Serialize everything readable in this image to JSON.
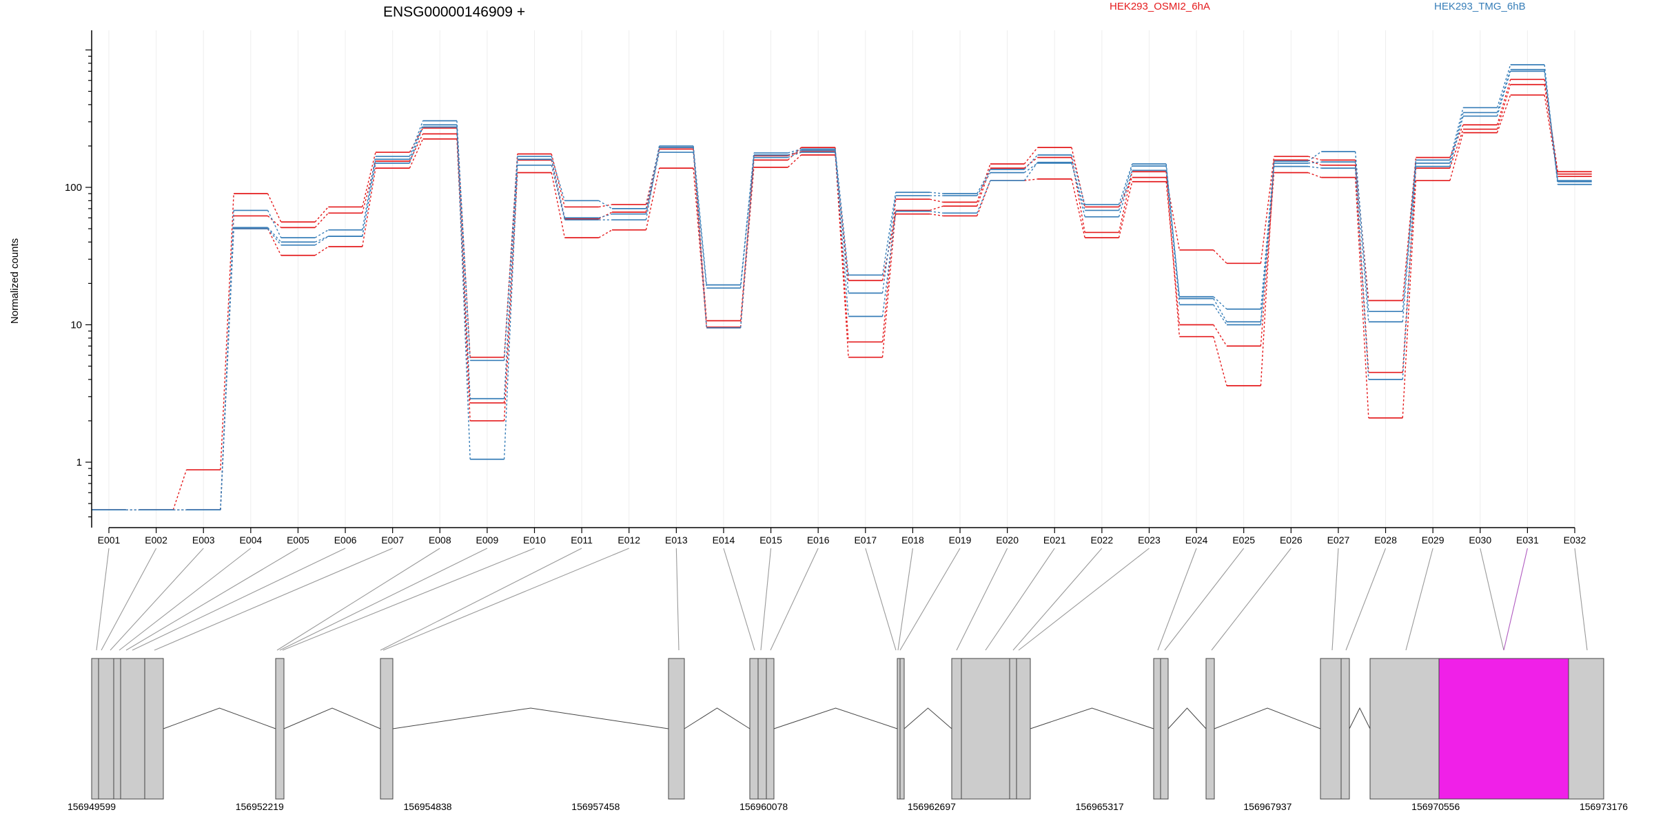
{
  "chart_data": {
    "type": "line",
    "title": "ENSG00000146909 +",
    "ylabel": "Normalized counts",
    "y_scale": "log",
    "ylim": [
      0.4,
      1000
    ],
    "yticks": [
      1,
      10,
      100
    ],
    "grid": "vertical lines at each exon",
    "legend": "top-right",
    "categories": [
      "E001",
      "E002",
      "E003",
      "E004",
      "E005",
      "E006",
      "E007",
      "E008",
      "E009",
      "E010",
      "E011",
      "E012",
      "E013",
      "E014",
      "E015",
      "E016",
      "E017",
      "E018",
      "E019",
      "E020",
      "E021",
      "E022",
      "E023",
      "E024",
      "E025",
      "E026",
      "E027",
      "E028",
      "E029",
      "E030",
      "E031",
      "E032"
    ],
    "highlight_exon": "E031",
    "series": [
      {
        "name": "HEK293_OSMI2_6hA",
        "color": "#e41a1c",
        "replicates": [
          [
            0.45,
            0.45,
            0.88,
            90,
            56,
            72,
            180,
            270,
            5.8,
            175,
            72,
            75,
            195,
            10.7,
            158,
            195,
            7.5,
            82,
            78,
            148,
            195,
            72,
            118,
            35,
            28,
            168,
            158,
            15,
            165,
            285,
            610,
            130
          ],
          [
            0.45,
            0.45,
            0.45,
            62,
            51,
            65,
            155,
            245,
            2.7,
            158,
            59,
            66,
            190,
            9.6,
            170,
            182,
            5.8,
            68,
            73,
            138,
            165,
            47,
            130,
            8.2,
            3.6,
            158,
            145,
            4.5,
            138,
            265,
            560,
            125
          ],
          [
            0.45,
            0.45,
            0.45,
            50,
            32,
            37,
            138,
            225,
            2.0,
            128,
            43,
            49,
            138,
            9.5,
            140,
            172,
            21,
            64,
            62,
            112,
            115,
            43,
            110,
            10,
            7.0,
            128,
            118,
            2.1,
            112,
            250,
            470,
            120
          ]
        ]
      },
      {
        "name": "HEK293_TMG_6hB",
        "color": "#377eb8",
        "replicates": [
          [
            0.45,
            0.45,
            0.45,
            68,
            43,
            49,
            168,
            305,
            5.5,
            168,
            80,
            70,
            200,
            19.5,
            178,
            190,
            23,
            92,
            90,
            135,
            172,
            75,
            148,
            16,
            13,
            155,
            182,
            12.5,
            158,
            380,
            780,
            105
          ],
          [
            0.45,
            0.45,
            0.45,
            51,
            40,
            44,
            160,
            285,
            2.9,
            160,
            60,
            64,
            180,
            18.5,
            172,
            186,
            17,
            87,
            87,
            128,
            150,
            68,
            143,
            15.5,
            10.5,
            150,
            153,
            10.5,
            150,
            350,
            720,
            112
          ],
          [
            0.45,
            0.45,
            0.45,
            50,
            38,
            44,
            150,
            275,
            1.05,
            145,
            58,
            58,
            195,
            9.5,
            165,
            180,
            11.5,
            67,
            65,
            112,
            152,
            61,
            133,
            14,
            10,
            142,
            138,
            4.0,
            142,
            330,
            700,
            110
          ]
        ]
      }
    ],
    "x_axis_labels": [
      "156949599",
      "156952219",
      "156954838",
      "156957458",
      "156960078",
      "156962697",
      "156965317",
      "156967937",
      "156970556",
      "156973176"
    ]
  }
}
